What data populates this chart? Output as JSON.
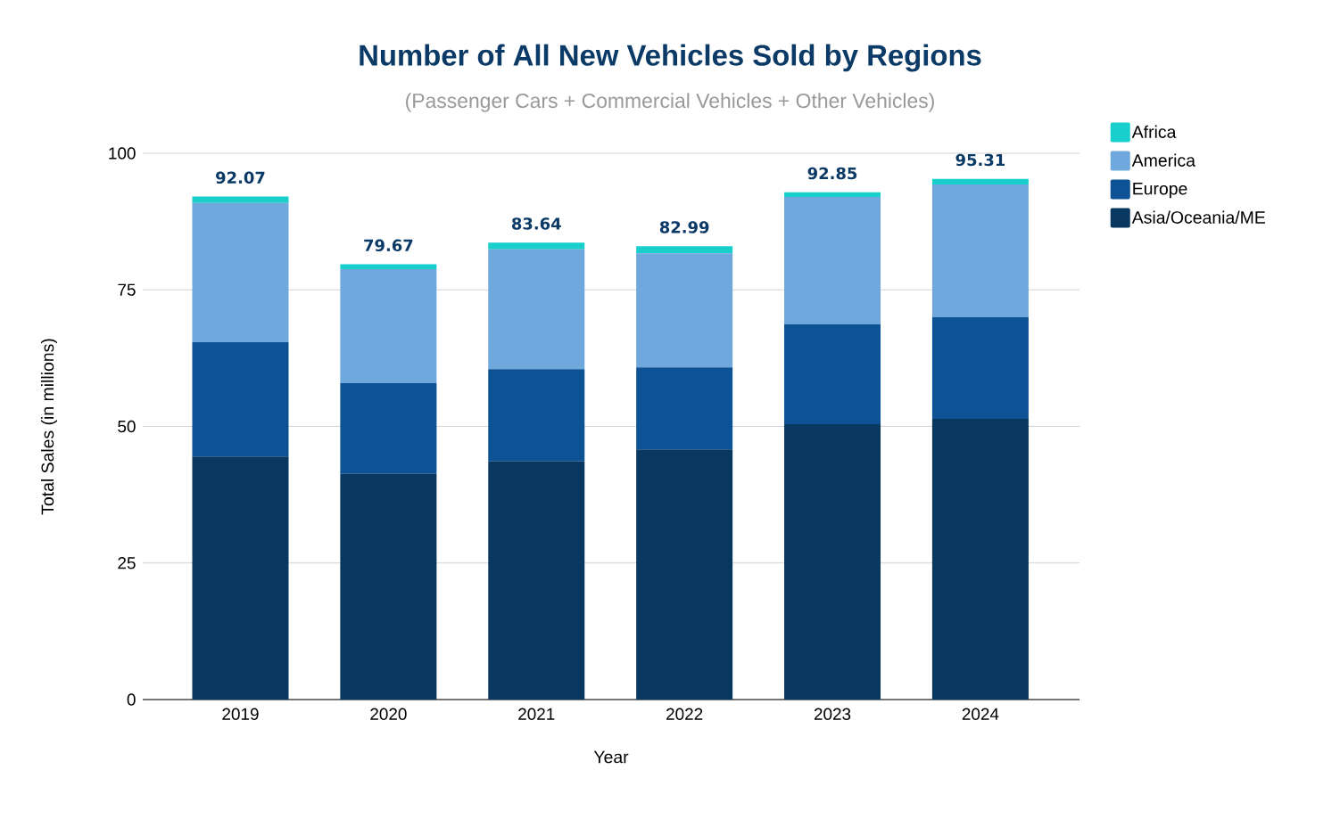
{
  "chart_data": {
    "type": "bar",
    "stacked": true,
    "title": "Number of All New Vehicles Sold by Regions",
    "subtitle": "(Passenger Cars + Commercial Vehicles + Other Vehicles)",
    "xlabel": "Year",
    "ylabel": "Total Sales (in millions)",
    "categories": [
      "2019",
      "2020",
      "2021",
      "2022",
      "2023",
      "2024"
    ],
    "series": [
      {
        "name": "Asia/Oceania/ME",
        "color": "#08375f",
        "values": [
          44.5,
          41.3,
          43.6,
          45.8,
          50.4,
          51.4
        ]
      },
      {
        "name": "Europe",
        "color": "#0d5294",
        "values": [
          20.9,
          16.6,
          16.9,
          15.0,
          18.3,
          18.6
        ]
      },
      {
        "name": "America",
        "color": "#6fa8dc",
        "values": [
          25.5,
          20.9,
          21.9,
          20.9,
          23.3,
          24.3
        ]
      },
      {
        "name": "Africa",
        "color": "#18cfcc",
        "values": [
          1.17,
          0.87,
          1.24,
          1.29,
          0.85,
          1.01
        ]
      }
    ],
    "totals": [
      "92.07",
      "79.67",
      "83.64",
      "82.99",
      "92.85",
      "95.31"
    ],
    "ylim": [
      0,
      100
    ],
    "yticks": [
      0,
      25,
      50,
      75,
      100
    ],
    "grid": "y",
    "legend": "top right"
  }
}
